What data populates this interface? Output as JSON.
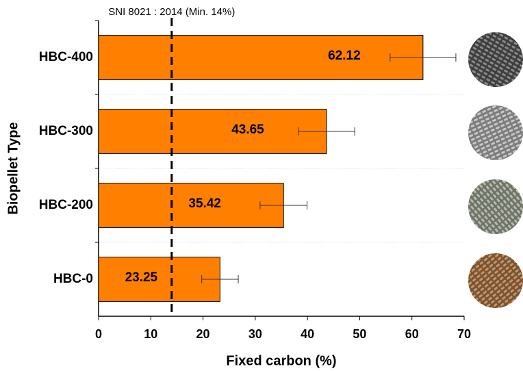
{
  "chart_data": {
    "type": "bar",
    "orientation": "horizontal",
    "xlabel": "Fixed carbon (%)",
    "ylabel": "Biopellet Type",
    "categories": [
      "HBC-400",
      "HBC-300",
      "HBC-200",
      "HBC-0"
    ],
    "values": [
      62.12,
      43.65,
      35.42,
      23.25
    ],
    "errors": [
      6.3,
      5.4,
      4.5,
      3.5
    ],
    "color": "#ff8000",
    "xlim": [
      0,
      70
    ],
    "xticks": [
      0,
      10,
      20,
      30,
      40,
      50,
      60,
      70
    ],
    "reference": {
      "value": 14,
      "label": "SNI 8021 : 2014 (Min. 14%)"
    }
  }
}
